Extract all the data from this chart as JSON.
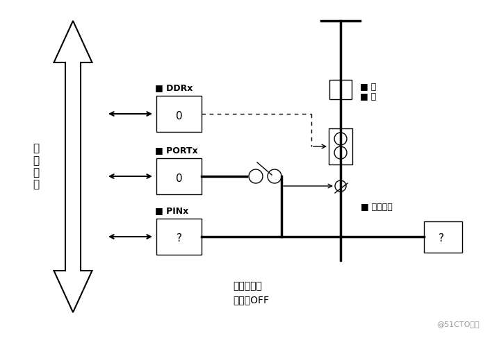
{
  "bg_color": "#ffffff",
  "fig_width": 7.05,
  "fig_height": 4.87,
  "dpi": 100,
  "bus_label": "数\n据\n总\n线",
  "reg_DDRx_label": "DDRx",
  "reg_PORTx_label": "PORTx",
  "reg_PINx_label": "PINx",
  "reg_DDRx_val": "0",
  "reg_PORTx_val": "0",
  "reg_PINx_val": "?",
  "pin_label": "物理引脚",
  "pull_label1": "上",
  "pull_label2": "拉",
  "dir_label": "方向：输入",
  "pull_state_label": "上拉：OFF",
  "watermark": "@51CTO博客"
}
